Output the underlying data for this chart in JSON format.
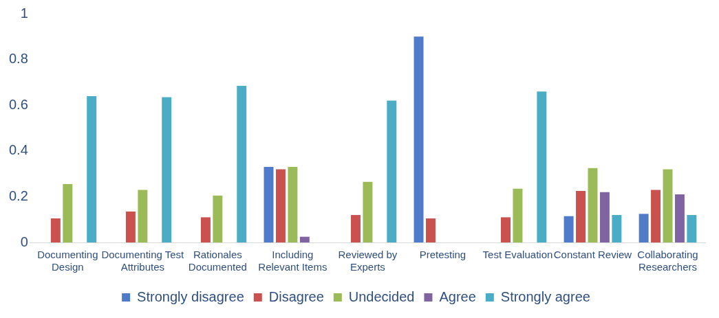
{
  "chart_data": {
    "type": "bar",
    "categories": [
      "Documenting Design",
      "Documenting Test Attributes",
      "Rationales Documented",
      "Including Relevant Items",
      "Reviewed by Experts",
      "Pretesting",
      "Test Evaluation",
      "Constant Review",
      "Collaborating Researchers"
    ],
    "series": [
      {
        "name": "Strongly disagree",
        "color": "#4f7bc8",
        "values": [
          0,
          0,
          0,
          0.33,
          0,
          0.9,
          0,
          0.115,
          0.125
        ]
      },
      {
        "name": "Disagree",
        "color": "#c9524e",
        "values": [
          0.105,
          0.135,
          0.11,
          0.32,
          0.12,
          0.105,
          0.11,
          0.225,
          0.23
        ]
      },
      {
        "name": "Undecided",
        "color": "#9bbb59",
        "values": [
          0.255,
          0.23,
          0.205,
          0.33,
          0.265,
          0,
          0.235,
          0.325,
          0.32
        ]
      },
      {
        "name": "Agree",
        "color": "#8064a2",
        "values": [
          0,
          0,
          0,
          0.025,
          0,
          0,
          0,
          0.22,
          0.21
        ]
      },
      {
        "name": "Strongly agree",
        "color": "#4bacc6",
        "values": [
          0.64,
          0.635,
          0.685,
          0,
          0.62,
          0,
          0.66,
          0.12,
          0.12
        ]
      }
    ],
    "ylim": [
      0,
      1
    ],
    "yticks": [
      0,
      0.2,
      0.4,
      0.6,
      0.8,
      1
    ],
    "legend": "bottom",
    "grid": false
  }
}
